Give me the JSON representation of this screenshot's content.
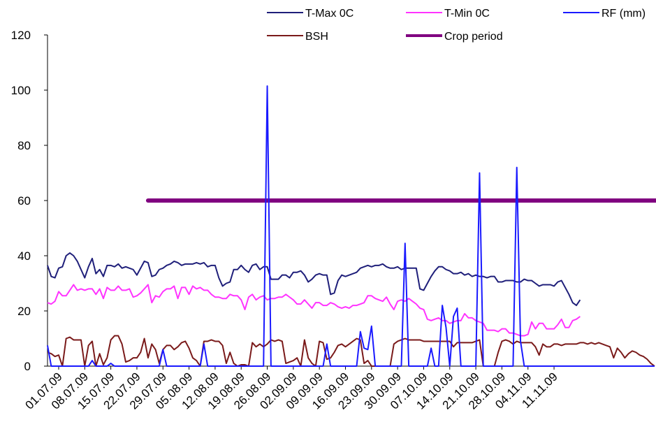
{
  "chart_data": {
    "type": "line",
    "title": "",
    "xlabel": "",
    "ylabel": "",
    "ylim": [
      0,
      120
    ],
    "yticks": [
      0,
      20,
      40,
      60,
      80,
      100,
      120
    ],
    "grid": false,
    "legend_position": "top-right",
    "x_tick_labels": [
      "01.07.09",
      "08.07.09",
      "15.07.09",
      "22.07.09",
      "29.07.09",
      "05.08.09",
      "12.08.09",
      "19.08.09",
      "26.08.09",
      "02.09.09",
      "09.09.09",
      "16.09.09",
      "23.09.09",
      "30.09.09",
      "07.10.09",
      "14.10.09",
      "21.10.09",
      "28.10.09",
      "04.11.09",
      "11.11.09"
    ],
    "series": [
      {
        "name": "T-Max 0C",
        "color": "#1f1f7a",
        "values": [
          36.5,
          32.5,
          32.0,
          35.5,
          36.0,
          40.0,
          41.0,
          40.0,
          38.0,
          35.0,
          32.0,
          36.0,
          39.0,
          33.5,
          35.0,
          32.5,
          36.5,
          36.5,
          36.0,
          37.0,
          35.5,
          36.0,
          35.5,
          35.0,
          33.0,
          35.5,
          38.0,
          37.5,
          32.5,
          33.0,
          35.0,
          35.5,
          36.5,
          37.0,
          38.0,
          37.5,
          36.5,
          37.0,
          37.0,
          37.0,
          37.5,
          37.0,
          37.5,
          36.0,
          36.5,
          36.5,
          32.0,
          29.0,
          30.0,
          30.5,
          35.0,
          35.0,
          36.5,
          35.0,
          34.0,
          36.5,
          37.0,
          35.0,
          36.0,
          36.0,
          31.5,
          31.5,
          31.5,
          33.0,
          33.0,
          32.0,
          34.0,
          34.0,
          34.5,
          33.0,
          30.5,
          31.5,
          33.0,
          33.5,
          33.0,
          33.0,
          26.0,
          26.5,
          31.0,
          33.0,
          32.5,
          33.0,
          33.5,
          34.0,
          35.5,
          36.0,
          36.5,
          36.0,
          36.5,
          36.5,
          37.0,
          36.0,
          35.5,
          35.5,
          36.0,
          35.0,
          35.5,
          35.5,
          35.5,
          35.5,
          28.0,
          27.5,
          30.0,
          32.5,
          34.5,
          36.0,
          36.0,
          35.0,
          34.5,
          33.5,
          33.5,
          34.0,
          33.0,
          33.5,
          32.5,
          33.0,
          32.5,
          32.5,
          32.0,
          32.5,
          32.5,
          30.5,
          30.5,
          31.0,
          31.0,
          31.0,
          30.5,
          30.5,
          31.5,
          31.0,
          31.0,
          30.0,
          29.0,
          29.5,
          29.5,
          29.5,
          29.0,
          30.5,
          31.0,
          28.5,
          26.0,
          23.0,
          22.0,
          24.0
        ]
      },
      {
        "name": "T-Min 0C",
        "color": "#ff33ff",
        "values": [
          23.0,
          22.5,
          23.5,
          27.0,
          25.5,
          25.5,
          27.5,
          29.5,
          27.5,
          28.0,
          27.5,
          28.0,
          28.0,
          26.0,
          28.0,
          24.5,
          28.5,
          27.5,
          27.5,
          29.0,
          27.5,
          27.5,
          28.0,
          25.0,
          25.5,
          26.5,
          28.0,
          29.5,
          23.0,
          25.5,
          25.0,
          27.0,
          28.0,
          28.0,
          29.0,
          24.5,
          28.5,
          28.5,
          26.0,
          29.0,
          28.0,
          28.5,
          27.5,
          27.5,
          26.0,
          25.0,
          25.0,
          24.5,
          24.5,
          26.0,
          25.5,
          25.5,
          24.0,
          20.5,
          25.0,
          26.0,
          24.0,
          25.0,
          25.5,
          24.0,
          24.5,
          24.5,
          25.0,
          25.0,
          26.0,
          25.0,
          24.0,
          22.5,
          22.5,
          24.0,
          22.5,
          21.0,
          23.0,
          23.0,
          22.0,
          22.0,
          23.0,
          22.5,
          21.5,
          21.0,
          21.5,
          21.0,
          22.0,
          22.0,
          22.5,
          23.0,
          25.5,
          25.5,
          24.5,
          24.0,
          23.5,
          25.0,
          22.5,
          20.5,
          23.5,
          24.0,
          23.5,
          24.5,
          23.5,
          22.5,
          21.0,
          20.5,
          17.0,
          16.5,
          17.0,
          17.5,
          16.5,
          16.5,
          15.5,
          16.0,
          16.5,
          16.5,
          19.0,
          17.5,
          17.5,
          16.5,
          16.0,
          15.5,
          13.0,
          13.0,
          13.0,
          12.5,
          13.5,
          13.5,
          12.0,
          12.0,
          11.5,
          11.0,
          11.0,
          11.5,
          16.0,
          13.5,
          15.5,
          15.5,
          13.5,
          13.5,
          13.5,
          15.0,
          17.0,
          14.0,
          14.0,
          16.5,
          17.0,
          18.0
        ]
      },
      {
        "name": "RF (mm)",
        "color": "#1a1aff",
        "values": [
          7.5,
          0,
          0,
          0,
          0,
          0,
          0,
          0,
          0,
          0,
          0,
          0,
          2,
          0,
          0,
          0,
          0,
          1,
          0,
          0,
          0,
          0,
          0,
          0,
          0,
          0,
          0,
          0,
          0,
          0,
          0,
          6,
          0,
          0,
          0,
          0,
          0,
          0,
          0,
          0,
          0,
          0,
          8,
          0,
          0,
          0,
          0,
          0,
          0,
          0,
          0,
          0,
          0,
          0,
          0,
          0,
          0,
          0,
          0,
          101.5,
          0,
          0,
          0,
          0,
          0,
          0,
          0,
          0,
          0,
          0,
          0,
          0,
          0,
          0,
          0,
          8,
          0,
          0,
          0,
          0,
          0,
          0,
          0,
          0,
          12.5,
          6.5,
          6.0,
          14.5,
          0,
          0,
          0,
          0,
          0,
          0,
          0,
          0,
          44.5,
          0,
          0,
          0,
          0,
          0,
          0,
          6.5,
          0,
          0,
          22,
          14,
          0,
          18,
          21,
          0,
          0,
          0,
          0,
          0,
          70,
          0,
          0,
          0,
          0,
          0,
          0,
          0,
          0,
          0,
          72,
          9,
          0,
          0,
          0,
          0,
          0,
          0,
          0,
          0,
          0,
          0,
          0,
          0,
          0,
          0,
          0,
          0,
          0,
          0,
          0,
          0,
          0,
          0,
          0,
          0,
          0,
          0,
          0,
          0,
          0,
          0,
          0,
          0,
          0,
          0,
          0,
          0,
          0,
          0,
          0,
          0,
          0,
          0,
          0,
          0,
          0,
          0,
          0,
          0,
          0,
          0,
          0,
          0,
          0,
          0,
          0,
          0,
          0,
          0,
          0,
          0,
          0,
          0,
          0,
          0,
          0,
          0,
          0,
          0,
          0,
          0,
          0,
          0,
          0,
          0,
          0,
          0,
          0,
          0,
          0,
          0,
          0,
          0,
          0,
          0,
          0,
          0,
          0,
          0,
          0,
          0,
          0,
          0,
          0,
          0,
          0,
          0,
          0,
          0,
          0,
          0,
          0,
          0,
          0,
          0,
          0,
          0,
          0,
          0,
          0,
          0,
          0,
          0,
          0,
          0,
          0,
          0,
          0,
          2,
          1
        ]
      },
      {
        "name": "BSH",
        "color": "#7a1a1a",
        "values": [
          5.0,
          4.5,
          3.5,
          4.0,
          0,
          10.0,
          10.5,
          9.5,
          9.5,
          9.5,
          0,
          7.5,
          9.0,
          0,
          4.5,
          0.5,
          3.0,
          9.5,
          11.0,
          11.0,
          8.0,
          1.5,
          2.0,
          3.0,
          3.0,
          5.0,
          10.0,
          3.0,
          8.0,
          6.0,
          1.0,
          6.0,
          7.5,
          7.5,
          6.0,
          7.0,
          8.5,
          9.0,
          6.5,
          3.0,
          2.0,
          0,
          9.0,
          9.0,
          9.5,
          9.0,
          9.0,
          7.5,
          1.0,
          5.0,
          1.0,
          0,
          0.5,
          0.5,
          0,
          8.5,
          7.0,
          8.0,
          7.0,
          8.0,
          9.5,
          9.0,
          9.5,
          9.0,
          1.0,
          1.5,
          2.0,
          3.0,
          0,
          9.5,
          3.0,
          1.0,
          0,
          9.0,
          8.5,
          2.5,
          3.0,
          5.0,
          7.5,
          8.0,
          7.0,
          8.0,
          9.0,
          10.0,
          9.5,
          1.0,
          2.0,
          0,
          0,
          0,
          0,
          0,
          0,
          8.0,
          9.0,
          9.5,
          10.0,
          9.5,
          9.5,
          9.5,
          9.5,
          9.0,
          9.0,
          9.0,
          9.0,
          9.0,
          9.0,
          9.0,
          9.0,
          7.0,
          8.5,
          8.5,
          8.5,
          8.5,
          8.5,
          9.0,
          9.5,
          0,
          0,
          0,
          0,
          5.0,
          9.0,
          9.5,
          9.0,
          8.0,
          9.0,
          8.5,
          8.5,
          8.5,
          8.5,
          7.0,
          4.0,
          8.0,
          7.0,
          7.0,
          8.0,
          8.0,
          7.5,
          8.0,
          8.0,
          8.0,
          8.0,
          8.5,
          8.5,
          8.0,
          8.5,
          8.0,
          8.5,
          8.0,
          7.5,
          7.0,
          3.0,
          6.5,
          5.0,
          3.0,
          4.5,
          5.5,
          5.0,
          4.0,
          3.5,
          2.5,
          1.0,
          0
        ]
      },
      {
        "name": "Crop period",
        "color": "#800080",
        "x_start_index": 27,
        "x_end_index": 165,
        "value": 60
      }
    ]
  }
}
